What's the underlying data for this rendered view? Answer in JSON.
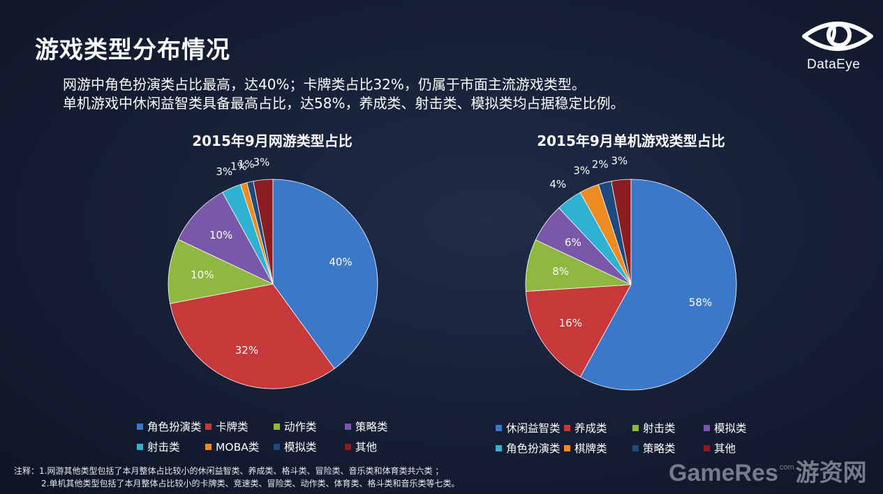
{
  "page": {
    "title": "游戏类型分布情况",
    "subtitle_lines": [
      "网游中角色扮演类占比最高，达40%；卡牌类占比32%，仍属于市面主流游戏类型。",
      "单机游戏中休闲益智类具备最高占比，达58%，养成类、射击类、模拟类均占据稳定比例。"
    ],
    "logo_text": "DataEye",
    "notes": [
      "注释：1.网游其他类型包括了本月整体占比较小的休闲益智类、养成类、格斗类、冒险类、音乐类和体育类共六类 ；",
      "2.单机其他类型包括了本月整体占比较小的卡牌类、竞速类、冒险类、动作类、体育类、格斗类和音乐类等七类。"
    ],
    "watermark": {
      "main": "GameRes",
      "com": "com",
      "cn": "游资网"
    }
  },
  "chart_data": [
    {
      "type": "pie",
      "title": "2015年9月网游类型占比",
      "categories": [
        "角色扮演类",
        "卡牌类",
        "动作类",
        "策略类",
        "射击类",
        "MOBA类",
        "模拟类",
        "其他"
      ],
      "values": [
        40,
        32,
        10,
        10,
        3,
        1,
        1,
        3
      ],
      "labels": [
        "40%",
        "32%",
        "10%",
        "10%",
        "3%",
        "1%",
        "1%",
        "3%"
      ],
      "colors": [
        "#3b78c9",
        "#c8383a",
        "#8fb840",
        "#7a57a9",
        "#2fb1d1",
        "#ef8b21",
        "#1f4a7e",
        "#8b1d22"
      ],
      "legend_position": "bottom"
    },
    {
      "type": "pie",
      "title": "2015年9月单机游戏类型占比",
      "categories": [
        "休闲益智类",
        "养成类",
        "射击类",
        "模拟类",
        "角色扮演类",
        "棋牌类",
        "策略类",
        "其他"
      ],
      "values": [
        58,
        16,
        8,
        6,
        4,
        3,
        2,
        3
      ],
      "labels": [
        "58%",
        "16%",
        "8%",
        "6%",
        "4%",
        "3%",
        "2%",
        "3%"
      ],
      "colors": [
        "#3b78c9",
        "#c8383a",
        "#8fb840",
        "#7a57a9",
        "#2fb1d1",
        "#ef8b21",
        "#1f4a7e",
        "#8b1d22"
      ],
      "legend_position": "bottom"
    }
  ]
}
